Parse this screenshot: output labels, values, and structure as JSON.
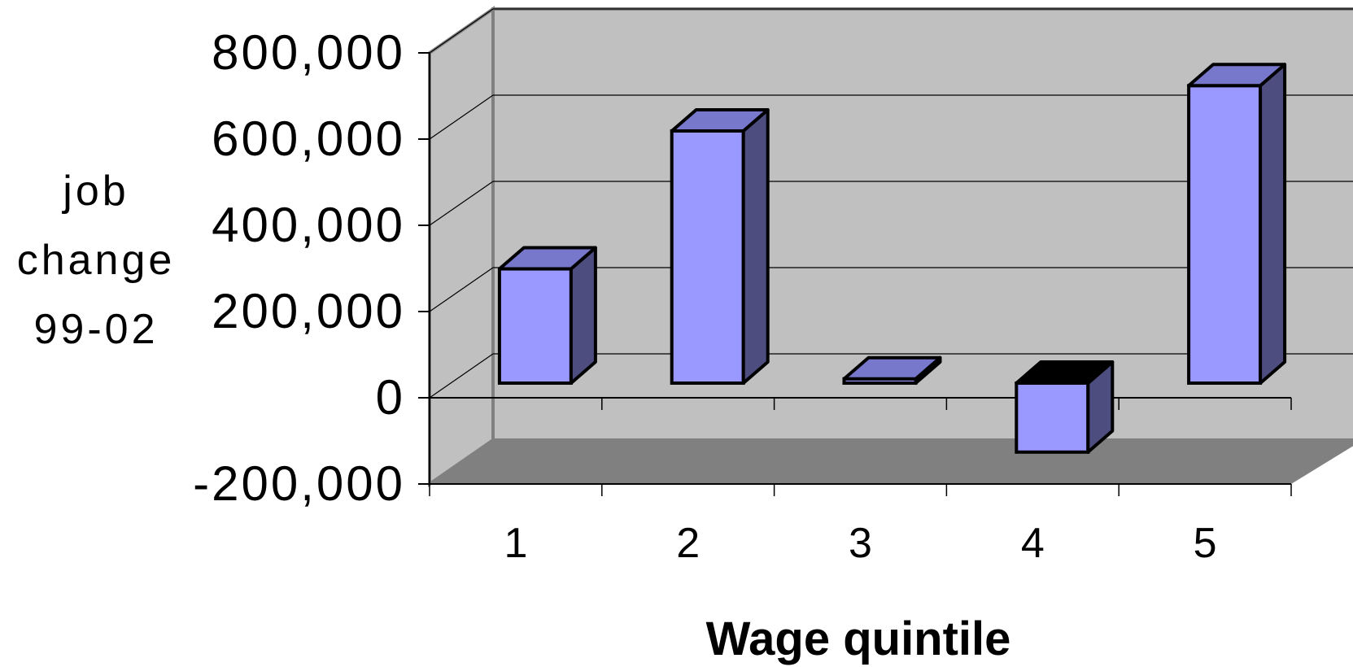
{
  "chart_data": {
    "type": "bar",
    "style": "3d-column",
    "categories": [
      "1",
      "2",
      "3",
      "4",
      "5"
    ],
    "values": [
      265000,
      585000,
      10000,
      -160000,
      690000
    ],
    "xlabel": "Wage quintile",
    "ylabel_lines": [
      "job",
      "change",
      "99-02"
    ],
    "ylim": [
      -200000,
      800000
    ],
    "yticks": [
      800000,
      600000,
      400000,
      200000,
      0,
      -200000
    ],
    "ytick_labels": [
      "800,000",
      "600,000",
      "400,000",
      "200,000",
      "0",
      "-200,000"
    ],
    "grid": true,
    "legend": "none",
    "colors": {
      "bar_front": "#9999ff",
      "bar_top": "#7777cc",
      "bar_side": "#4d4d80",
      "back_wall": "#c0c0c0",
      "side_wall": "#c0c0c0",
      "floor": "#808080",
      "gridline": "#000000"
    }
  }
}
